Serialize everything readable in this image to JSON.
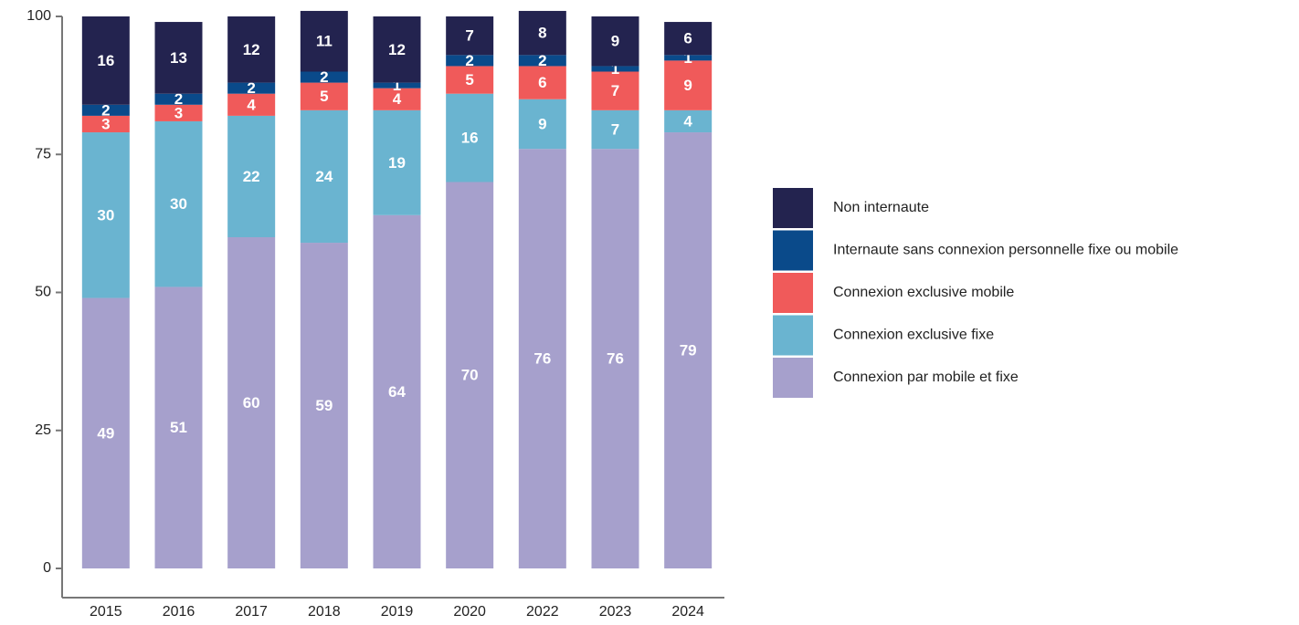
{
  "chart_data": {
    "type": "stacked_bar",
    "categories": [
      "2015",
      "2016",
      "2017",
      "2018",
      "2019",
      "2020",
      "2022",
      "2023",
      "2024"
    ],
    "series": [
      {
        "name": "Connexion par mobile et fixe",
        "color": "#a6a0cc",
        "values": [
          49,
          51,
          60,
          59,
          64,
          70,
          76,
          76,
          79
        ]
      },
      {
        "name": "Connexion exclusive fixe",
        "color": "#6ab4d0",
        "values": [
          30,
          30,
          22,
          24,
          19,
          16,
          9,
          7,
          4
        ]
      },
      {
        "name": "Connexion exclusive mobile",
        "color": "#f05a5a",
        "values": [
          3,
          3,
          4,
          5,
          4,
          5,
          6,
          7,
          9
        ]
      },
      {
        "name": "Internaute sans connexion personnelle fixe ou mobile",
        "color": "#0a4a8a",
        "values": [
          2,
          2,
          2,
          2,
          1,
          2,
          2,
          1,
          1
        ]
      },
      {
        "name": "Non internaute",
        "color": "#23234f",
        "values": [
          16,
          13,
          12,
          11,
          12,
          7,
          8,
          9,
          6
        ]
      }
    ],
    "ylim": [
      0,
      100
    ],
    "yticks": [
      0,
      25,
      50,
      75,
      100
    ],
    "legend": "right"
  }
}
